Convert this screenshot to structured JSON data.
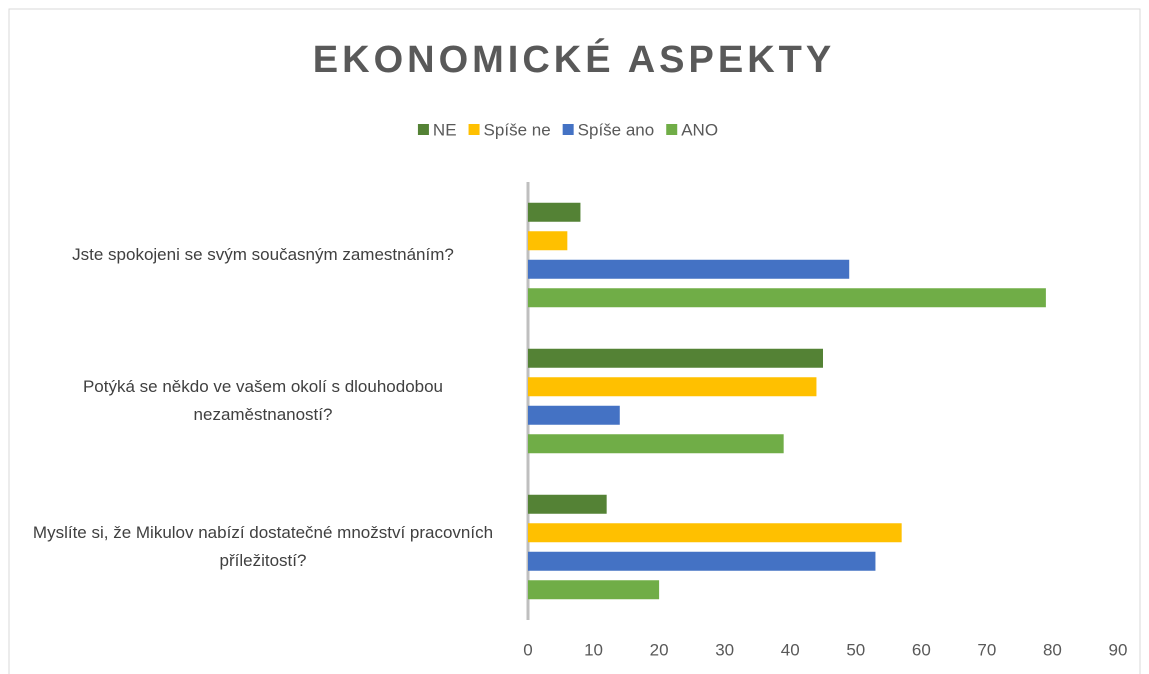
{
  "chart_data": {
    "type": "bar",
    "orientation": "horizontal",
    "title": "EKONOMICKÉ ASPEKTY",
    "categories": [
      "Jste spokojeni se svým současným zamestnáním?",
      "Potýká se někdo ve vašem okolí s dlouhodobou nezaměstnaností?",
      "Myslíte si, že Mikulov nabízí dostatečné množství pracovních příležitostí?"
    ],
    "series": [
      {
        "name": "NE",
        "color": "#548235",
        "values": [
          8,
          45,
          12
        ]
      },
      {
        "name": "Spíše ne",
        "color": "#ffc000",
        "values": [
          6,
          44,
          57
        ]
      },
      {
        "name": "Spíše ano",
        "color": "#4472c4",
        "values": [
          49,
          14,
          53
        ]
      },
      {
        "name": "ANO",
        "color": "#70ad47",
        "values": [
          79,
          39,
          20
        ]
      }
    ],
    "xlim": [
      0,
      90
    ],
    "xticks": [
      0,
      10,
      20,
      30,
      40,
      50,
      60,
      70,
      80,
      90
    ],
    "legend": "top",
    "grid": false
  }
}
